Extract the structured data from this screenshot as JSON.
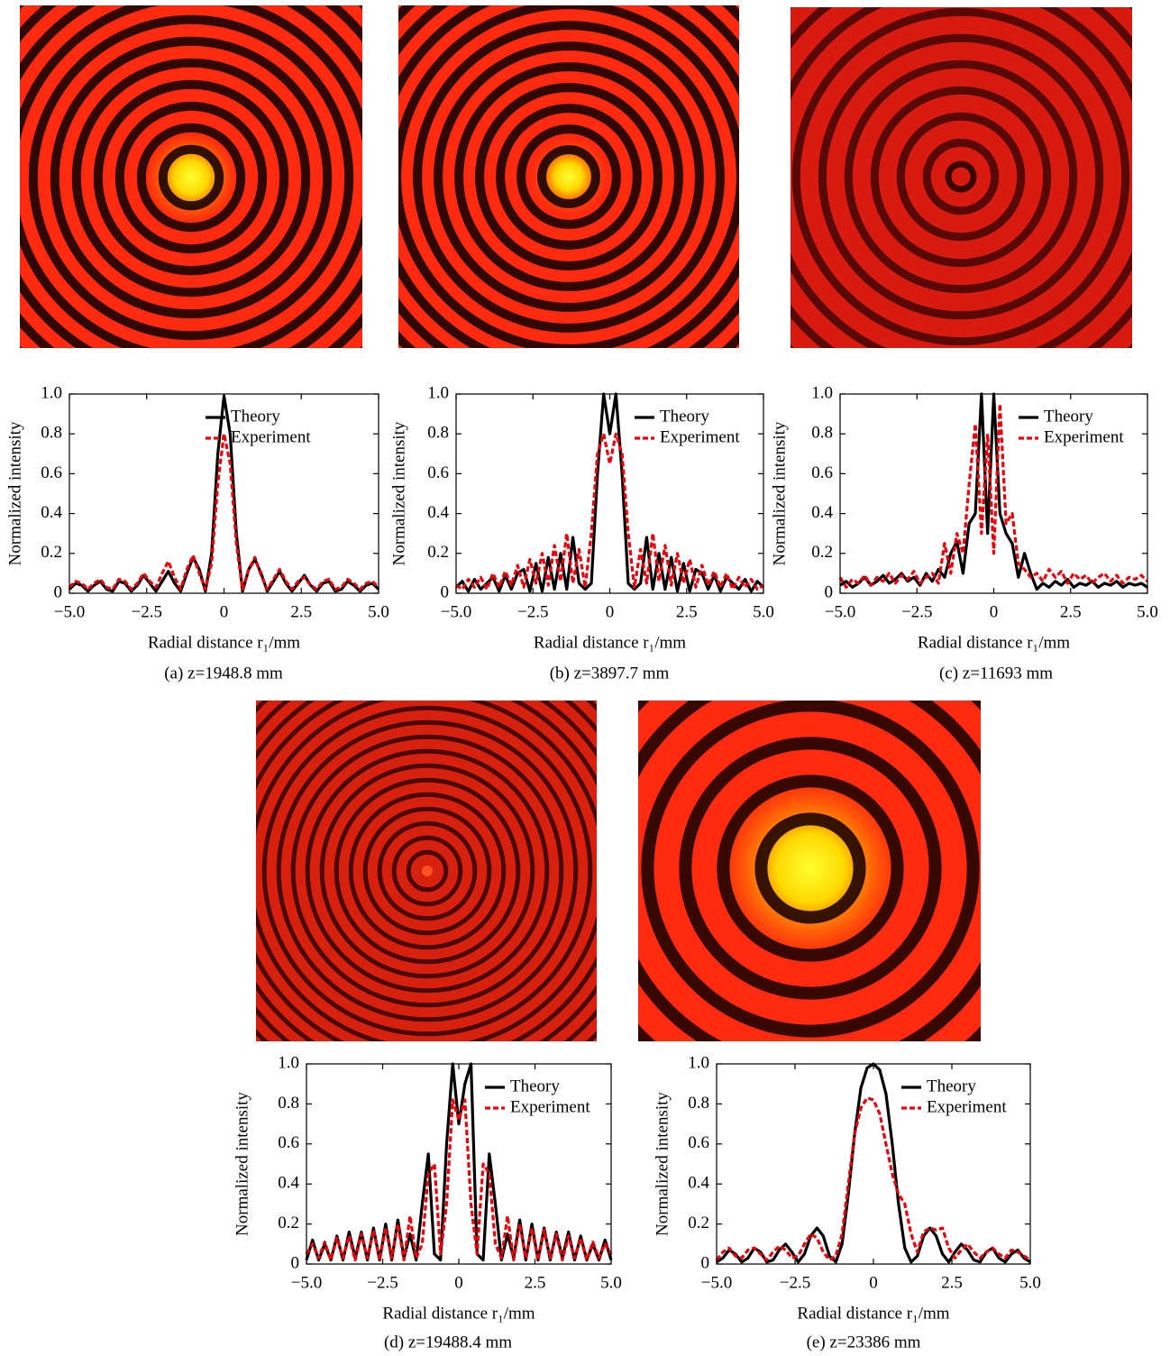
{
  "chart_data": [
    {
      "type": "line",
      "caption": "(a) z=1948.8 mm",
      "xlabel": "Radial distance r₁/mm",
      "ylabel": "Normalized intensity",
      "xlim": [
        -5,
        5
      ],
      "ylim": [
        0,
        1
      ],
      "xticks": [
        {
          "value": -5,
          "label": "−5.0"
        },
        {
          "value": -2.5,
          "label": "−2.5"
        },
        0,
        2.5,
        {
          "value": 5,
          "label": "5.0"
        }
      ],
      "yticks": [
        0,
        0.2,
        0.4,
        0.6,
        0.8,
        {
          "value": 1,
          "label": "1.0"
        }
      ],
      "legend": "upper right",
      "x": [
        -5,
        -4.8,
        -4.6,
        -4.4,
        -4.2,
        -4,
        -3.8,
        -3.6,
        -3.4,
        -3.2,
        -3,
        -2.8,
        -2.6,
        -2.4,
        -2.2,
        -2,
        -1.8,
        -1.6,
        -1.4,
        -1.2,
        -1,
        -0.8,
        -0.6,
        -0.4,
        -0.2,
        0,
        0.2,
        0.4,
        0.6,
        0.8,
        1,
        1.2,
        1.4,
        1.6,
        1.8,
        2,
        2.2,
        2.4,
        2.6,
        2.8,
        3,
        3.2,
        3.4,
        3.6,
        3.8,
        4,
        4.2,
        4.4,
        4.6,
        4.8,
        5
      ],
      "series": [
        {
          "name": "Theory",
          "color": "#000000",
          "style": "solid",
          "values": [
            0.02,
            0.05,
            0.04,
            0.01,
            0.04,
            0.06,
            0.02,
            0.01,
            0.06,
            0.05,
            0.01,
            0.04,
            0.09,
            0.05,
            0.01,
            0.06,
            0.11,
            0.05,
            0.01,
            0.1,
            0.18,
            0.12,
            0.01,
            0.2,
            0.7,
            0.99,
            0.8,
            0.3,
            0.01,
            0.12,
            0.17,
            0.1,
            0.01,
            0.06,
            0.11,
            0.05,
            0.01,
            0.05,
            0.09,
            0.04,
            0.01,
            0.05,
            0.06,
            0.01,
            0.02,
            0.06,
            0.04,
            0.01,
            0.04,
            0.05,
            0.02
          ]
        },
        {
          "name": "Experiment",
          "color": "#e8000b",
          "style": "dashed",
          "values": [
            0.03,
            0.06,
            0.05,
            0.02,
            0.05,
            0.07,
            0.03,
            0.02,
            0.07,
            0.06,
            0.02,
            0.05,
            0.1,
            0.06,
            0.03,
            0.1,
            0.16,
            0.08,
            0.02,
            0.12,
            0.19,
            0.1,
            0.02,
            0.15,
            0.55,
            0.8,
            0.65,
            0.25,
            0.02,
            0.12,
            0.18,
            0.09,
            0.02,
            0.07,
            0.12,
            0.06,
            0.02,
            0.06,
            0.08,
            0.04,
            0.02,
            0.06,
            0.07,
            0.02,
            0.03,
            0.07,
            0.05,
            0.02,
            0.05,
            0.06,
            0.03
          ]
        }
      ]
    },
    {
      "type": "line",
      "caption": "(b) z=3897.7 mm",
      "xlabel": "Radial distance r₁/mm",
      "ylabel": "Normalized intensity",
      "xlim": [
        -5,
        5
      ],
      "ylim": [
        0,
        1
      ],
      "xticks": [
        {
          "value": -5,
          "label": "−5.0"
        },
        {
          "value": -2.5,
          "label": "−2.5"
        },
        0,
        2.5,
        {
          "value": 5,
          "label": "5.0"
        }
      ],
      "yticks": [
        0,
        0.2,
        0.4,
        0.6,
        0.8,
        {
          "value": 1,
          "label": "1.0"
        }
      ],
      "legend": "upper right",
      "x": [
        -5,
        -4.8,
        -4.6,
        -4.4,
        -4.2,
        -4,
        -3.8,
        -3.6,
        -3.4,
        -3.2,
        -3,
        -2.8,
        -2.6,
        -2.4,
        -2.2,
        -2,
        -1.8,
        -1.6,
        -1.4,
        -1.2,
        -1,
        -0.8,
        -0.6,
        -0.4,
        -0.2,
        0,
        0.2,
        0.4,
        0.6,
        0.8,
        1,
        1.2,
        1.4,
        1.6,
        1.8,
        2,
        2.2,
        2.4,
        2.6,
        2.8,
        3,
        3.2,
        3.4,
        3.6,
        3.8,
        4,
        4.2,
        4.4,
        4.6,
        4.8,
        5
      ],
      "series": [
        {
          "name": "Theory",
          "color": "#000000",
          "style": "solid",
          "values": [
            0.03,
            0.06,
            0.01,
            0.07,
            0.02,
            0.05,
            0.08,
            0.01,
            0.09,
            0.02,
            0.1,
            0.12,
            0.01,
            0.15,
            0.01,
            0.18,
            0.02,
            0.2,
            0.02,
            0.28,
            0.05,
            0.02,
            0.05,
            0.6,
            1.0,
            0.8,
            1.0,
            0.6,
            0.05,
            0.02,
            0.05,
            0.28,
            0.02,
            0.2,
            0.02,
            0.18,
            0.01,
            0.15,
            0.01,
            0.12,
            0.1,
            0.02,
            0.09,
            0.01,
            0.08,
            0.05,
            0.02,
            0.07,
            0.01,
            0.06,
            0.03
          ]
        },
        {
          "name": "Experiment",
          "color": "#e8000b",
          "style": "dashed",
          "values": [
            0.04,
            0.02,
            0.07,
            0.03,
            0.08,
            0.02,
            0.1,
            0.03,
            0.11,
            0.04,
            0.14,
            0.03,
            0.17,
            0.05,
            0.2,
            0.04,
            0.24,
            0.06,
            0.3,
            0.05,
            0.22,
            0.03,
            0.3,
            0.7,
            0.8,
            0.65,
            0.8,
            0.7,
            0.3,
            0.03,
            0.22,
            0.05,
            0.3,
            0.06,
            0.24,
            0.04,
            0.2,
            0.05,
            0.17,
            0.03,
            0.14,
            0.04,
            0.11,
            0.03,
            0.1,
            0.02,
            0.08,
            0.03,
            0.07,
            0.02,
            0.04
          ]
        }
      ]
    },
    {
      "type": "line",
      "caption": "(c) z=11693 mm",
      "xlabel": "Radial distance r₁/mm",
      "ylabel": "Normalized intensity",
      "xlim": [
        -5,
        5
      ],
      "ylim": [
        0,
        1
      ],
      "xticks": [
        {
          "value": -5,
          "label": "−5.0"
        },
        {
          "value": -2.5,
          "label": "−2.5"
        },
        0,
        2.5,
        {
          "value": 5,
          "label": "5.0"
        }
      ],
      "yticks": [
        0,
        0.2,
        0.4,
        0.6,
        0.8,
        {
          "value": 1,
          "label": "1.0"
        }
      ],
      "legend": "upper right",
      "x": [
        -5,
        -4.8,
        -4.6,
        -4.4,
        -4.2,
        -4,
        -3.8,
        -3.6,
        -3.4,
        -3.2,
        -3,
        -2.8,
        -2.6,
        -2.4,
        -2.2,
        -2,
        -1.8,
        -1.6,
        -1.4,
        -1.2,
        -1,
        -0.8,
        -0.6,
        -0.4,
        -0.2,
        0,
        0.2,
        0.4,
        0.6,
        0.8,
        1,
        1.2,
        1.4,
        1.6,
        1.8,
        2,
        2.2,
        2.4,
        2.6,
        2.8,
        3,
        3.2,
        3.4,
        3.6,
        3.8,
        4,
        4.2,
        4.4,
        4.6,
        4.8,
        5
      ],
      "series": [
        {
          "name": "Theory",
          "color": "#000000",
          "style": "solid",
          "values": [
            0.04,
            0.06,
            0.03,
            0.05,
            0.08,
            0.04,
            0.06,
            0.09,
            0.05,
            0.07,
            0.1,
            0.06,
            0.08,
            0.04,
            0.1,
            0.06,
            0.12,
            0.08,
            0.2,
            0.26,
            0.1,
            0.35,
            0.4,
            1.0,
            0.3,
            1.0,
            0.4,
            0.3,
            0.25,
            0.08,
            0.2,
            0.1,
            0.02,
            0.05,
            0.03,
            0.06,
            0.04,
            0.07,
            0.03,
            0.05,
            0.04,
            0.06,
            0.03,
            0.05,
            0.04,
            0.06,
            0.03,
            0.05,
            0.04,
            0.05,
            0.03
          ]
        },
        {
          "name": "Experiment",
          "color": "#e8000b",
          "style": "dashed",
          "values": [
            0.08,
            0.03,
            0.07,
            0.05,
            0.09,
            0.04,
            0.08,
            0.06,
            0.1,
            0.05,
            0.09,
            0.07,
            0.11,
            0.05,
            0.08,
            0.1,
            0.05,
            0.25,
            0.1,
            0.3,
            0.2,
            0.55,
            0.85,
            0.3,
            0.8,
            0.2,
            0.95,
            0.35,
            0.4,
            0.15,
            0.12,
            0.08,
            0.1,
            0.06,
            0.12,
            0.08,
            0.11,
            0.05,
            0.1,
            0.07,
            0.09,
            0.05,
            0.08,
            0.1,
            0.06,
            0.09,
            0.05,
            0.08,
            0.07,
            0.09,
            0.06
          ]
        }
      ]
    },
    {
      "type": "line",
      "caption": "(d) z=19488.4 mm",
      "xlabel": "Radial distance r₁/mm",
      "ylabel": "Normalized intensity",
      "xlim": [
        -5,
        5
      ],
      "ylim": [
        0,
        1
      ],
      "xticks": [
        {
          "value": -5,
          "label": "−5.0"
        },
        {
          "value": -2.5,
          "label": "−2.5"
        },
        0,
        2.5,
        {
          "value": 5,
          "label": "5.0"
        }
      ],
      "yticks": [
        0,
        0.2,
        0.4,
        0.6,
        0.8,
        {
          "value": 1,
          "label": "1.0"
        }
      ],
      "legend": "upper right",
      "x": [
        -5,
        -4.8,
        -4.6,
        -4.4,
        -4.2,
        -4,
        -3.8,
        -3.6,
        -3.4,
        -3.2,
        -3,
        -2.8,
        -2.6,
        -2.4,
        -2.2,
        -2,
        -1.8,
        -1.6,
        -1.4,
        -1.2,
        -1,
        -0.8,
        -0.6,
        -0.4,
        -0.2,
        0,
        0.2,
        0.4,
        0.6,
        0.8,
        1,
        1.2,
        1.4,
        1.6,
        1.8,
        2,
        2.2,
        2.4,
        2.6,
        2.8,
        3,
        3.2,
        3.4,
        3.6,
        3.8,
        4,
        4.2,
        4.4,
        4.6,
        4.8,
        5
      ],
      "series": [
        {
          "name": "Theory",
          "color": "#000000",
          "style": "solid",
          "values": [
            0.02,
            0.12,
            0.02,
            0.1,
            0.02,
            0.14,
            0.02,
            0.16,
            0.03,
            0.16,
            0.02,
            0.18,
            0.02,
            0.2,
            0.02,
            0.22,
            0.03,
            0.15,
            0.02,
            0.3,
            0.55,
            0.05,
            0.02,
            0.6,
            1.0,
            0.7,
            0.9,
            1.0,
            0.05,
            0.02,
            0.55,
            0.3,
            0.02,
            0.15,
            0.03,
            0.22,
            0.02,
            0.2,
            0.02,
            0.18,
            0.02,
            0.16,
            0.03,
            0.16,
            0.02,
            0.14,
            0.02,
            0.1,
            0.02,
            0.12,
            0.02
          ]
        },
        {
          "name": "Experiment",
          "color": "#e8000b",
          "style": "dashed",
          "values": [
            0.05,
            0.1,
            0.03,
            0.11,
            0.02,
            0.13,
            0.03,
            0.14,
            0.02,
            0.15,
            0.03,
            0.17,
            0.02,
            0.18,
            0.03,
            0.2,
            0.02,
            0.24,
            0.03,
            0.1,
            0.45,
            0.5,
            0.05,
            0.3,
            0.82,
            0.72,
            0.82,
            0.3,
            0.05,
            0.5,
            0.45,
            0.1,
            0.03,
            0.24,
            0.02,
            0.2,
            0.03,
            0.18,
            0.02,
            0.17,
            0.03,
            0.15,
            0.02,
            0.14,
            0.03,
            0.13,
            0.02,
            0.11,
            0.03,
            0.1,
            0.05
          ]
        }
      ]
    },
    {
      "type": "line",
      "caption": "(e) z=23386 mm",
      "xlabel": "Radial distance r₁/mm",
      "ylabel": "Normalized intensity",
      "xlim": [
        -5,
        5
      ],
      "ylim": [
        0,
        1
      ],
      "xticks": [
        {
          "value": -5,
          "label": "−5.0"
        },
        {
          "value": -2.5,
          "label": "−2.5"
        },
        0,
        2.5,
        {
          "value": 5,
          "label": "5.0"
        }
      ],
      "yticks": [
        0,
        0.2,
        0.4,
        0.6,
        0.8,
        {
          "value": 1,
          "label": "1.0"
        }
      ],
      "legend": "upper right",
      "x": [
        -5,
        -4.8,
        -4.6,
        -4.4,
        -4.2,
        -4,
        -3.8,
        -3.6,
        -3.4,
        -3.2,
        -3,
        -2.8,
        -2.6,
        -2.4,
        -2.2,
        -2,
        -1.8,
        -1.6,
        -1.4,
        -1.2,
        -1,
        -0.8,
        -0.6,
        -0.4,
        -0.2,
        0,
        0.2,
        0.4,
        0.6,
        0.8,
        1,
        1.2,
        1.4,
        1.6,
        1.8,
        2,
        2.2,
        2.4,
        2.6,
        2.8,
        3,
        3.2,
        3.4,
        3.6,
        3.8,
        4,
        4.2,
        4.4,
        4.6,
        4.8,
        5
      ],
      "series": [
        {
          "name": "Theory",
          "color": "#000000",
          "style": "solid",
          "values": [
            0.01,
            0.03,
            0.07,
            0.05,
            0.01,
            0.03,
            0.08,
            0.06,
            0.01,
            0.02,
            0.07,
            0.1,
            0.06,
            0.01,
            0.05,
            0.14,
            0.18,
            0.14,
            0.04,
            0.01,
            0.1,
            0.35,
            0.65,
            0.88,
            0.98,
            1.0,
            0.97,
            0.85,
            0.6,
            0.3,
            0.08,
            0.01,
            0.04,
            0.14,
            0.18,
            0.14,
            0.05,
            0.01,
            0.06,
            0.1,
            0.07,
            0.02,
            0.01,
            0.06,
            0.08,
            0.03,
            0.01,
            0.05,
            0.07,
            0.03,
            0.01
          ]
        },
        {
          "name": "Experiment",
          "color": "#e8000b",
          "style": "dashed",
          "values": [
            0.02,
            0.06,
            0.08,
            0.04,
            0.03,
            0.07,
            0.08,
            0.05,
            0.02,
            0.06,
            0.09,
            0.07,
            0.03,
            0.04,
            0.1,
            0.15,
            0.13,
            0.06,
            0.02,
            0.04,
            0.15,
            0.4,
            0.65,
            0.78,
            0.83,
            0.82,
            0.75,
            0.6,
            0.45,
            0.35,
            0.3,
            0.15,
            0.06,
            0.16,
            0.18,
            0.17,
            0.18,
            0.08,
            0.03,
            0.07,
            0.1,
            0.06,
            0.03,
            0.06,
            0.08,
            0.05,
            0.03,
            0.07,
            0.06,
            0.04,
            0.02
          ]
        }
      ]
    }
  ]
}
